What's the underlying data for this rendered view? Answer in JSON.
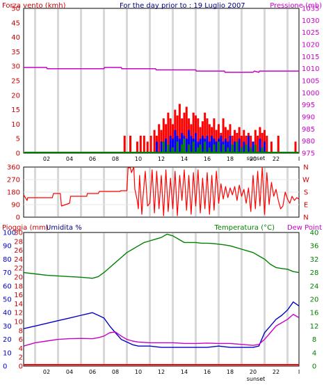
{
  "chart_data": [
    {
      "type": "bar",
      "title": "For the day prior to : 19 Luglio 2007",
      "ylabel": "Forza vento (kmh)",
      "ylabel_right": "Pressione (mb)",
      "ylim": [
        0,
        50
      ],
      "ylim_right": [
        975,
        1035
      ],
      "yticks": [
        "0",
        "5",
        "10",
        "15",
        "20",
        "25",
        "30",
        "35",
        "40",
        "45",
        "50"
      ],
      "yticks_right": [
        "975",
        "980",
        "985",
        "990",
        "995",
        "1000",
        "1005",
        "1010",
        "1015",
        "1020",
        "1025",
        "1030",
        "1035"
      ],
      "xlim": [
        0,
        24
      ],
      "x_ticks": [
        "02",
        "04",
        "06",
        "08",
        "10",
        "12",
        "14",
        "16",
        "18",
        "20",
        "22",
        "I"
      ],
      "sunset_label": "sunset",
      "grid": true,
      "series": [
        {
          "name": "Pressione (mb)",
          "color": "#c800c8",
          "kind": "line",
          "axis": "right",
          "x": [
            0,
            2.0,
            2.05,
            7.0,
            7.05,
            8.5,
            8.55,
            11.5,
            11.55,
            15.0,
            15.05,
            17.5,
            17.55,
            20.0,
            20.1,
            20.5,
            20.55,
            24
          ],
          "values": [
            1010.5,
            1010.5,
            1010,
            1010,
            1010.5,
            1010.5,
            1010,
            1010,
            1009.5,
            1009.5,
            1009,
            1009,
            1008.5,
            1008.5,
            1009,
            1008.5,
            1009,
            1009
          ]
        },
        {
          "name": "raffica",
          "color": "#ff0000",
          "kind": "bars",
          "x": [
            8.8,
            9.3,
            9.9,
            10.2,
            10.5,
            10.8,
            11.1,
            11.4,
            11.6,
            11.8,
            12.0,
            12.2,
            12.4,
            12.6,
            12.8,
            13.0,
            13.2,
            13.4,
            13.6,
            13.8,
            14.0,
            14.2,
            14.4,
            14.6,
            14.8,
            15.0,
            15.2,
            15.4,
            15.6,
            15.8,
            16.0,
            16.2,
            16.4,
            16.6,
            16.8,
            17.0,
            17.2,
            17.4,
            17.6,
            17.8,
            18.0,
            18.2,
            18.4,
            18.6,
            18.8,
            19.0,
            19.2,
            19.4,
            19.6,
            19.8,
            20.0,
            20.2,
            20.4,
            20.6,
            20.8,
            21.0,
            21.2,
            21.6,
            22.2,
            23.7
          ],
          "values": [
            6,
            6,
            4,
            6,
            6,
            4,
            6,
            8,
            6,
            10,
            8,
            12,
            10,
            14,
            12,
            10,
            15,
            13,
            17,
            12,
            14,
            16,
            12,
            10,
            14,
            13,
            12,
            9,
            11,
            14,
            12,
            10,
            9,
            12,
            8,
            10,
            7,
            12,
            9,
            8,
            10,
            6,
            8,
            7,
            9,
            6,
            8,
            6,
            7,
            6,
            4,
            8,
            6,
            9,
            7,
            8,
            6,
            4,
            6,
            4
          ]
        },
        {
          "name": "media",
          "color": "#0000ff",
          "kind": "bars",
          "x": [
            11.6,
            12.0,
            12.4,
            12.8,
            13.0,
            13.2,
            13.4,
            13.6,
            13.8,
            14.0,
            14.2,
            14.4,
            14.6,
            14.8,
            15.0,
            15.2,
            15.4,
            15.6,
            15.8,
            16.0,
            16.2,
            16.4,
            16.6,
            16.8,
            17.0,
            17.2,
            17.4,
            17.6,
            17.8,
            18.0,
            18.4,
            18.8,
            19.2,
            19.6,
            20.0,
            20.6,
            21.0
          ],
          "values": [
            4,
            4,
            5,
            6,
            5,
            8,
            6,
            5,
            7,
            6,
            5,
            8,
            6,
            5,
            7,
            4,
            5,
            6,
            5,
            6,
            4,
            6,
            5,
            4,
            5,
            6,
            4,
            5,
            4,
            6,
            4,
            5,
            4,
            6,
            4,
            5,
            4
          ]
        },
        {
          "name": "minima",
          "color": "#008000",
          "kind": "bars",
          "x": [
            12.2,
            12.6,
            13.0,
            13.4,
            13.8,
            14.0,
            14.4,
            14.8,
            15.2,
            15.4,
            15.8,
            16.2,
            16.6,
            17.0,
            17.4,
            17.8,
            18.2,
            18.6,
            19.0,
            19.4,
            19.8,
            20.2,
            20.8
          ],
          "values": [
            4,
            3,
            2,
            4,
            3,
            5,
            3,
            4,
            2,
            3,
            4,
            2,
            3,
            4,
            3,
            2,
            3,
            4,
            2,
            3,
            2,
            3,
            2
          ]
        }
      ]
    },
    {
      "type": "line",
      "ylim": [
        0,
        360
      ],
      "yticks": [
        "0",
        "90",
        "180",
        "270",
        "360"
      ],
      "compass": [
        "N",
        "W",
        "S",
        "E",
        "N"
      ],
      "xlim": [
        0,
        24
      ],
      "x_ticks": [
        "02",
        "04",
        "06",
        "08",
        "10",
        "12",
        "14",
        "16",
        "18",
        "20",
        "22",
        "I"
      ],
      "sunset_label": "sunset",
      "grid": true,
      "series": [
        {
          "name": "direzione",
          "color": "#ff0000",
          "x": [
            0,
            0.3,
            0.35,
            2.5,
            2.6,
            3.2,
            3.3,
            4.0,
            4.1,
            5.5,
            5.55,
            6.5,
            6.6,
            8.4,
            8.45,
            9.0,
            9.1,
            9.3,
            9.4,
            9.6,
            9.7,
            9.9,
            10.0,
            10.1,
            10.3,
            10.4,
            10.6,
            10.8,
            11.0,
            11.2,
            11.4,
            11.6,
            11.8,
            12.0,
            12.2,
            12.4,
            12.6,
            12.8,
            13.0,
            13.2,
            13.4,
            13.6,
            13.8,
            14.0,
            14.2,
            14.4,
            14.6,
            14.8,
            15.0,
            15.2,
            15.4,
            15.6,
            15.8,
            16.0,
            16.2,
            16.4,
            16.6,
            16.8,
            17.0,
            17.2,
            17.4,
            17.6,
            17.8,
            18.0,
            18.2,
            18.4,
            18.6,
            18.8,
            19.0,
            19.2,
            19.4,
            19.6,
            19.8,
            20.0,
            20.2,
            20.4,
            20.6,
            20.8,
            21.0,
            21.2,
            21.4,
            21.6,
            21.8,
            22.0,
            22.2,
            22.4,
            22.6,
            22.8,
            23.0,
            23.2,
            23.4,
            23.6,
            23.8,
            24
          ],
          "values": [
            160,
            120,
            140,
            140,
            170,
            170,
            80,
            100,
            150,
            150,
            170,
            170,
            185,
            185,
            190,
            190,
            355,
            355,
            320,
            360,
            200,
            120,
            60,
            300,
            20,
            140,
            330,
            80,
            100,
            340,
            30,
            330,
            60,
            300,
            10,
            340,
            40,
            280,
            60,
            330,
            10,
            300,
            120,
            340,
            50,
            300,
            20,
            320,
            80,
            340,
            30,
            280,
            60,
            320,
            20,
            300,
            50,
            330,
            100,
            240,
            130,
            220,
            140,
            210,
            160,
            220,
            120,
            230,
            150,
            200,
            100,
            210,
            40,
            300,
            60,
            330,
            80,
            360,
            20,
            320,
            90,
            250,
            150,
            200,
            120,
            60,
            80,
            180,
            130,
            100,
            150,
            120,
            140,
            130
          ]
        }
      ]
    },
    {
      "type": "line",
      "ylabel": "Pioggia (mm)",
      "ylabel2": "Umidita %",
      "ylabel_right": "Temperatura (°C)",
      "ylabel_right2": "Dew Point",
      "ylim": [
        0,
        100
      ],
      "ylim_right": [
        0,
        40
      ],
      "yticks": [
        "0",
        "10",
        "20",
        "30",
        "40",
        "50",
        "60",
        "70",
        "80",
        "90",
        "100"
      ],
      "yticks_rain": [
        "0",
        "2",
        "4",
        "6",
        "8",
        "10",
        "12",
        "14",
        "16",
        "18",
        "20",
        "22",
        "24",
        "26",
        "28",
        "30"
      ],
      "yticks_right": [
        "0",
        "4",
        "8",
        "12",
        "16",
        "20",
        "24",
        "28",
        "32",
        "36",
        "40"
      ],
      "xlim": [
        0,
        24
      ],
      "x_ticks": [
        "02",
        "04",
        "06",
        "08",
        "10",
        "12",
        "14",
        "16",
        "18",
        "20",
        "22",
        "I"
      ],
      "sunset_label": "sunset",
      "grid": true,
      "series": [
        {
          "name": "Temperatura (°C)",
          "color": "#008000",
          "axis": "right",
          "x": [
            0,
            1,
            2,
            3,
            4,
            5,
            6,
            6.5,
            7,
            7.5,
            8,
            8.5,
            9,
            9.5,
            10,
            10.5,
            11,
            11.5,
            12,
            12.5,
            13,
            13.5,
            14,
            14.5,
            15,
            15.5,
            16,
            16.5,
            17,
            17.5,
            18,
            18.5,
            19,
            19.5,
            20,
            20.5,
            21,
            21.5,
            22,
            22.5,
            23,
            23.5,
            24
          ],
          "values": [
            28,
            27.6,
            27.2,
            27,
            26.8,
            26.6,
            26.3,
            26.8,
            28,
            29.5,
            31,
            32.5,
            34,
            35,
            36,
            37,
            37.5,
            38,
            38.5,
            39.5,
            39,
            38,
            37,
            37,
            37,
            36.8,
            36.8,
            36.7,
            36.5,
            36.3,
            36,
            35.5,
            35,
            34.5,
            34,
            33,
            32,
            30.5,
            29.5,
            29.2,
            29,
            28.3,
            28
          ]
        },
        {
          "name": "Umidita %",
          "color": "#0000c8",
          "axis": "left",
          "x": [
            0,
            1,
            2,
            3,
            4,
            5,
            6,
            6.5,
            7,
            7.5,
            8,
            8.5,
            9,
            9.5,
            10,
            11,
            12,
            13,
            14,
            15,
            16,
            17,
            18,
            19,
            20,
            20.5,
            21,
            21.5,
            22,
            22.5,
            23,
            23.5,
            24
          ],
          "values": [
            28,
            30,
            32,
            34,
            36,
            38,
            40,
            38,
            36,
            30,
            25,
            20,
            18,
            16,
            15,
            15,
            14,
            14,
            14,
            14,
            14,
            15,
            14,
            14,
            14,
            15,
            25,
            30,
            35,
            38,
            42,
            48,
            45
          ]
        },
        {
          "name": "Dew Point",
          "color": "#c800c8",
          "axis": "right",
          "x": [
            0,
            1,
            2,
            3,
            4,
            5,
            6,
            6.5,
            7,
            7.5,
            8,
            8.5,
            9,
            9.5,
            10,
            11,
            12,
            13,
            14,
            15,
            16,
            17,
            18,
            19,
            20,
            20.5,
            21,
            21.5,
            22,
            22.5,
            23,
            23.5,
            24
          ],
          "values": [
            6,
            7,
            7.5,
            8,
            8.2,
            8.3,
            8.2,
            8.5,
            9,
            10,
            10.2,
            9,
            8,
            7.5,
            7.2,
            7,
            7,
            7,
            6.8,
            6.8,
            6.9,
            6.8,
            6.8,
            6.5,
            6.2,
            6.5,
            8,
            10,
            12,
            13,
            14,
            15.5,
            14.5
          ]
        },
        {
          "name": "Pioggia (mm)",
          "color": "#ff0000",
          "axis": "left",
          "x": [
            0,
            24
          ],
          "values": [
            0,
            0
          ]
        }
      ]
    }
  ]
}
